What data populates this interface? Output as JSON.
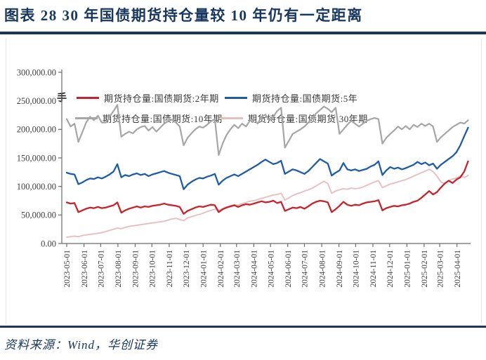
{
  "figure": {
    "title": "图表 28  30 年国债期货持仓量较 10 年仍有一定距离",
    "source_note": "资料来源：Wind，华创证券",
    "accent_color": "#17375E"
  },
  "chart_data": {
    "type": "line",
    "unit_label": "手",
    "legend_position": "top",
    "gridlines": false,
    "y_axis": {
      "range": [
        0,
        300000
      ],
      "tick_labels": [
        "300,000.00",
        "250,000.00",
        "200,000.00",
        "150,000.00",
        "100,000.00",
        "50,000.00",
        "0.00"
      ],
      "tick_values_thousands": [
        300,
        250,
        200,
        150,
        100,
        50,
        0
      ]
    },
    "x_axis": {
      "start": "2023-05-01",
      "end_visible": "2025-04-01",
      "tick_labels": [
        "2023-05-01",
        "2023-06-01",
        "2023-07-01",
        "2023-08-01",
        "2023-09-01",
        "2023-10-01",
        "2023-11-01",
        "2023-12-01",
        "2024-01-01",
        "2024-02-01",
        "2024-03-01",
        "2024-04-01",
        "2024-05-01",
        "2024-06-01",
        "2024-07-01",
        "2024-08-01",
        "2024-09-01",
        "2024-10-01",
        "2024-11-01",
        "2024-12-01",
        "2025-01-01",
        "2025-02-01",
        "2025-03-01",
        "2025-04-01"
      ],
      "tick_week_offsets": [
        0,
        4.43,
        8.71,
        13.14,
        17.57,
        21.86,
        26.29,
        30.57,
        35.0,
        39.43,
        43.57,
        48.0,
        52.29,
        56.71,
        61.0,
        65.43,
        69.86,
        74.14,
        78.57,
        82.86,
        87.29,
        91.71,
        95.71,
        100.14
      ]
    },
    "sampling": "one point per week starting 2023-05-01",
    "value_unit_scale": 1000,
    "series": [
      {
        "name": "期货持仓量:国债期货:2年期",
        "color": "#C8232A",
        "values_thousands": [
          72,
          70,
          71,
          55,
          58,
          61,
          63,
          62,
          64,
          62,
          63,
          65,
          67,
          72,
          54,
          58,
          61,
          63,
          65,
          63,
          65,
          64,
          66,
          67,
          68,
          70,
          68,
          67,
          66,
          64,
          52,
          57,
          60,
          63,
          65,
          64,
          66,
          68,
          67,
          55,
          60,
          63,
          65,
          67,
          64,
          67,
          69,
          68,
          70,
          72,
          74,
          72,
          73,
          75,
          71,
          73,
          57,
          60,
          63,
          62,
          64,
          61,
          65,
          70,
          73,
          75,
          74,
          72,
          55,
          60,
          66,
          73,
          68,
          66,
          68,
          67,
          70,
          72,
          73,
          74,
          76,
          58,
          62,
          64,
          66,
          65,
          67,
          68,
          70,
          73,
          75,
          80,
          86,
          92,
          86,
          90,
          98,
          105,
          110,
          106,
          112,
          116,
          126,
          144
        ]
      },
      {
        "name": "期货持仓量:国债期货:5年",
        "color": "#1F5CA8",
        "values_thousands": [
          124,
          122,
          121,
          104,
          107,
          111,
          114,
          113,
          116,
          114,
          117,
          121,
          126,
          139,
          116,
          120,
          118,
          121,
          123,
          120,
          122,
          118,
          121,
          123,
          125,
          127,
          124,
          122,
          120,
          118,
          95,
          103,
          108,
          112,
          115,
          114,
          117,
          119,
          122,
          103,
          110,
          115,
          118,
          121,
          118,
          122,
          126,
          130,
          134,
          138,
          143,
          147,
          143,
          139,
          141,
          145,
          122,
          126,
          130,
          128,
          125,
          122,
          127,
          134,
          141,
          148,
          144,
          140,
          119,
          124,
          128,
          141,
          130,
          128,
          130,
          127,
          129,
          131,
          135,
          138,
          144,
          120,
          128,
          134,
          131,
          133,
          130,
          132,
          135,
          138,
          143,
          139,
          142,
          137,
          140,
          131,
          138,
          143,
          148,
          153,
          160,
          172,
          188,
          203
        ]
      },
      {
        "name": "期货持仓量:国债期货:10年期",
        "color": "#A6A6A6",
        "values_thousands": [
          218,
          205,
          210,
          178,
          195,
          212,
          222,
          216,
          224,
          212,
          212,
          222,
          232,
          243,
          187,
          192,
          196,
          193,
          200,
          204,
          206,
          198,
          204,
          196,
          203,
          210,
          214,
          217,
          212,
          205,
          172,
          185,
          193,
          200,
          205,
          203,
          208,
          214,
          218,
          155,
          175,
          190,
          200,
          208,
          202,
          210,
          205,
          215,
          218,
          210,
          222,
          226,
          215,
          222,
          232,
          238,
          168,
          180,
          192,
          196,
          200,
          205,
          212,
          220,
          228,
          234,
          240,
          236,
          230,
          238,
          192,
          200,
          208,
          215,
          210,
          205,
          210,
          215,
          218,
          220,
          218,
          175,
          185,
          192,
          198,
          205,
          200,
          206,
          200,
          208,
          204,
          210,
          206,
          210,
          205,
          178,
          186,
          192,
          198,
          204,
          208,
          212,
          210,
          216
        ]
      },
      {
        "name": "期货持仓量:国债期货:30年期",
        "color": "#E9BEC1",
        "values_thousands": [
          11,
          12,
          13,
          12,
          14,
          15,
          16,
          17,
          18,
          19,
          21,
          23,
          25,
          27,
          26,
          28,
          30,
          31,
          32,
          33,
          34,
          35,
          36,
          37,
          38,
          39,
          41,
          43,
          44,
          42,
          40,
          45,
          47,
          49,
          51,
          53,
          56,
          58,
          60,
          58,
          61,
          64,
          66,
          68,
          67,
          70,
          72,
          74,
          75,
          77,
          79,
          81,
          83,
          85,
          86,
          88,
          76,
          80,
          84,
          87,
          89,
          92,
          94,
          97,
          101,
          105,
          109,
          105,
          88,
          92,
          94,
          96,
          95,
          97,
          96,
          97,
          99,
          102,
          105,
          108,
          110,
          98,
          101,
          104,
          106,
          108,
          110,
          112,
          115,
          118,
          121,
          124,
          127,
          130,
          126,
          118,
          108,
          105,
          110,
          113,
          115,
          118,
          116,
          119
        ]
      }
    ]
  }
}
